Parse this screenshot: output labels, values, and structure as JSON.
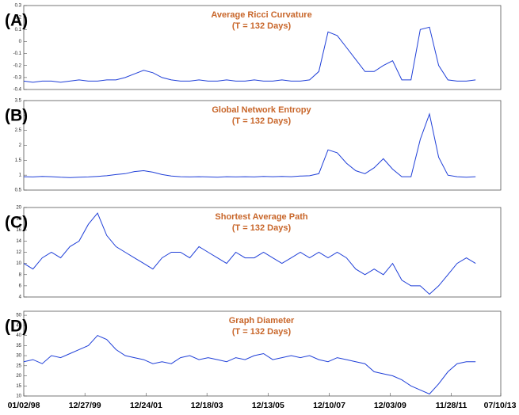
{
  "chart_data": [
    {
      "type": "line",
      "label": "(A)",
      "title": "Average Ricci Curvature",
      "subtitle": "(T = 132 Days)",
      "color": "#1f3fd8",
      "x": [
        1998.0,
        1998.3,
        1998.6,
        1998.9,
        1999.2,
        1999.5,
        1999.8,
        2000.1,
        2000.4,
        2000.7,
        2001.0,
        2001.3,
        2001.6,
        2001.9,
        2002.2,
        2002.5,
        2002.8,
        2003.1,
        2003.4,
        2003.7,
        2004.0,
        2004.3,
        2004.6,
        2004.9,
        2005.2,
        2005.5,
        2005.8,
        2006.1,
        2006.4,
        2006.7,
        2007.0,
        2007.3,
        2007.6,
        2007.9,
        2008.2,
        2008.5,
        2008.8,
        2009.1,
        2009.4,
        2009.7,
        2010.0,
        2010.3,
        2010.6,
        2010.9,
        2011.2,
        2011.5,
        2011.8,
        2012.1,
        2012.4,
        2012.7
      ],
      "values": [
        -0.33,
        -0.34,
        -0.33,
        -0.33,
        -0.34,
        -0.33,
        -0.32,
        -0.33,
        -0.33,
        -0.32,
        -0.32,
        -0.3,
        -0.27,
        -0.24,
        -0.26,
        -0.3,
        -0.32,
        -0.33,
        -0.33,
        -0.32,
        -0.33,
        -0.33,
        -0.32,
        -0.33,
        -0.33,
        -0.32,
        -0.33,
        -0.33,
        -0.32,
        -0.33,
        -0.33,
        -0.32,
        -0.25,
        0.08,
        0.05,
        -0.05,
        -0.15,
        -0.25,
        -0.25,
        -0.2,
        -0.16,
        -0.32,
        -0.32,
        0.1,
        0.12,
        -0.2,
        -0.32,
        -0.33,
        -0.33,
        -0.32
      ],
      "xlim": [
        1998.0,
        2013.52
      ],
      "ylim": [
        -0.4,
        0.3
      ],
      "yticks": [
        -0.4,
        -0.3,
        -0.2,
        -0.1,
        0,
        0.1,
        0.2,
        0.3
      ]
    },
    {
      "type": "line",
      "label": "(B)",
      "title": "Global Network Entropy",
      "subtitle": "(T = 132 Days)",
      "color": "#1f3fd8",
      "x": [
        1998.0,
        1998.3,
        1998.6,
        1998.9,
        1999.2,
        1999.5,
        1999.8,
        2000.1,
        2000.4,
        2000.7,
        2001.0,
        2001.3,
        2001.6,
        2001.9,
        2002.2,
        2002.5,
        2002.8,
        2003.1,
        2003.4,
        2003.7,
        2004.0,
        2004.3,
        2004.6,
        2004.9,
        2005.2,
        2005.5,
        2005.8,
        2006.1,
        2006.4,
        2006.7,
        2007.0,
        2007.3,
        2007.6,
        2007.9,
        2008.2,
        2008.5,
        2008.8,
        2009.1,
        2009.4,
        2009.7,
        2010.0,
        2010.3,
        2010.6,
        2010.9,
        2011.2,
        2011.5,
        2011.8,
        2012.1,
        2012.4,
        2012.7
      ],
      "values": [
        0.95,
        0.94,
        0.96,
        0.95,
        0.93,
        0.92,
        0.93,
        0.94,
        0.96,
        0.98,
        1.02,
        1.05,
        1.12,
        1.15,
        1.1,
        1.02,
        0.97,
        0.95,
        0.94,
        0.95,
        0.94,
        0.93,
        0.95,
        0.94,
        0.95,
        0.94,
        0.96,
        0.95,
        0.96,
        0.95,
        0.97,
        0.98,
        1.05,
        1.85,
        1.75,
        1.4,
        1.15,
        1.05,
        1.25,
        1.55,
        1.2,
        0.95,
        0.95,
        2.2,
        3.05,
        1.6,
        1.0,
        0.95,
        0.93,
        0.95
      ],
      "xlim": [
        1998.0,
        2013.52
      ],
      "ylim": [
        0.5,
        3.5
      ],
      "yticks": [
        0.5,
        1,
        1.5,
        2,
        2.5,
        3,
        3.5
      ]
    },
    {
      "type": "line",
      "label": "(C)",
      "title": "Shortest Average Path",
      "subtitle": "(T = 132 Days)",
      "color": "#1f3fd8",
      "x": [
        1998.0,
        1998.3,
        1998.6,
        1998.9,
        1999.2,
        1999.5,
        1999.8,
        2000.1,
        2000.4,
        2000.7,
        2001.0,
        2001.3,
        2001.6,
        2001.9,
        2002.2,
        2002.5,
        2002.8,
        2003.1,
        2003.4,
        2003.7,
        2004.0,
        2004.3,
        2004.6,
        2004.9,
        2005.2,
        2005.5,
        2005.8,
        2006.1,
        2006.4,
        2006.7,
        2007.0,
        2007.3,
        2007.6,
        2007.9,
        2008.2,
        2008.5,
        2008.8,
        2009.1,
        2009.4,
        2009.7,
        2010.0,
        2010.3,
        2010.6,
        2010.9,
        2011.2,
        2011.5,
        2011.8,
        2012.1,
        2012.4,
        2012.7
      ],
      "values": [
        10,
        9,
        11,
        12,
        11,
        13,
        14,
        17,
        19,
        15,
        13,
        12,
        11,
        10,
        9,
        11,
        12,
        12,
        11,
        13,
        12,
        11,
        10,
        12,
        11,
        11,
        12,
        11,
        10,
        11,
        12,
        11,
        12,
        11,
        12,
        11,
        9,
        8,
        9,
        8,
        10,
        7,
        6,
        6,
        4.5,
        6,
        8,
        10,
        11,
        10
      ],
      "xlim": [
        1998.0,
        2013.52
      ],
      "ylim": [
        4,
        20
      ],
      "yticks": [
        4,
        6,
        8,
        10,
        12,
        14,
        16,
        18,
        20
      ]
    },
    {
      "type": "line",
      "label": "(D)",
      "title": "Graph Diameter",
      "subtitle": "(T = 132 Days)",
      "color": "#1f3fd8",
      "x": [
        1998.0,
        1998.3,
        1998.6,
        1998.9,
        1999.2,
        1999.5,
        1999.8,
        2000.1,
        2000.4,
        2000.7,
        2001.0,
        2001.3,
        2001.6,
        2001.9,
        2002.2,
        2002.5,
        2002.8,
        2003.1,
        2003.4,
        2003.7,
        2004.0,
        2004.3,
        2004.6,
        2004.9,
        2005.2,
        2005.5,
        2005.8,
        2006.1,
        2006.4,
        2006.7,
        2007.0,
        2007.3,
        2007.6,
        2007.9,
        2008.2,
        2008.5,
        2008.8,
        2009.1,
        2009.4,
        2009.7,
        2010.0,
        2010.3,
        2010.6,
        2010.9,
        2011.2,
        2011.5,
        2011.8,
        2012.1,
        2012.4,
        2012.7
      ],
      "values": [
        27,
        28,
        26,
        30,
        29,
        31,
        33,
        35,
        40,
        38,
        33,
        30,
        29,
        28,
        26,
        27,
        26,
        29,
        30,
        28,
        29,
        28,
        27,
        29,
        28,
        30,
        31,
        28,
        29,
        30,
        29,
        30,
        28,
        27,
        29,
        28,
        27,
        26,
        22,
        21,
        20,
        18,
        15,
        13,
        11,
        16,
        22,
        26,
        27,
        27
      ],
      "xlim": [
        1998.0,
        2013.52
      ],
      "ylim": [
        10,
        52
      ],
      "yticks": [
        10,
        15,
        20,
        25,
        30,
        35,
        40,
        45,
        50
      ],
      "xticks": [
        {
          "value": 1998.0,
          "label": "01/02/98"
        },
        {
          "value": 1999.99,
          "label": "12/27/99"
        },
        {
          "value": 2001.98,
          "label": "12/24/01"
        },
        {
          "value": 2003.96,
          "label": "12/18/03"
        },
        {
          "value": 2005.95,
          "label": "12/13/05"
        },
        {
          "value": 2007.94,
          "label": "12/10/07"
        },
        {
          "value": 2009.92,
          "label": "12/03/09"
        },
        {
          "value": 2011.91,
          "label": "11/28/11"
        },
        {
          "value": 2013.52,
          "label": "07/10/13"
        }
      ]
    }
  ]
}
